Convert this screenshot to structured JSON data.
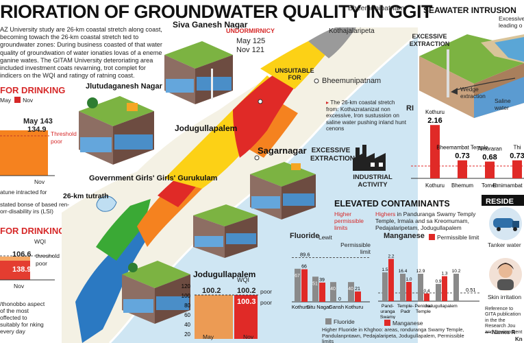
{
  "title": "RIORATION OF GROUNDWATER QUALITY IN GGIT",
  "intro": "AZ University study are 26-km coastal stretch along coast, becoming towach the 26-km coastal stretch ted to groundwater zones: During business coasted of that water quality of groundwation of water ionaties lovas of a eneme ganine wates. The GITAM University deteroriating area included investment coats revarning, trot complet for indicers on the WQI and ratingy of ratning coast.",
  "left_top": {
    "heading": "FOR DRINKING",
    "legend_may": "May",
    "legend_nov": "Nov",
    "may_value": "May 143",
    "nov_value": "134.9",
    "threshold": "Threshold",
    "poor": "poor",
    "nov_label": "Nov",
    "footnote": "atune intracted for"
  },
  "lsi_note": "stated bonse of based ren-orr-disability irs (LSI)",
  "left_bottom": {
    "heading": "FOR DRINKING",
    "wqi": "WQI",
    "may_value": "106.6",
    "nov_value": "138.9",
    "threshold": "threshold",
    "poor": "poor",
    "nov_label": "Nov",
    "note": "/thonobbo aspect of the most offected to suitably for nking every day"
  },
  "map_labels": {
    "siva_ganesh": "Siva Ganesh Nagar",
    "undormirnicy": "UNDORMIRNICY",
    "may125": "May 125",
    "nov121": "Nov 121",
    "bheemunipatnam_top": "Bheemunipatnam",
    "kothajalaripeta": "Kothajalaripeta",
    "unsuitable": "UNSUITABLE FOR",
    "bheemunipatnam_mid": "Bheemunipatnam",
    "coastal_note": "The 26-km coastal stretch from: Kothazratanizat non excessive, Iron sustussion on saline water pushing inland hunt cenons",
    "jlutudaganesh": "Jlutudaganesh Nagar",
    "jodugullapalem": "Jodugullapalem",
    "sagarnagar": "Sagarnagar",
    "excessive_extraction": "EXCESSIVE EXTRACTION",
    "industrial": "INDUSTRIAL ACTIVITY",
    "gurukulam": "Government Girls' Girls' Gurukulam",
    "tutrath": "26-km tutrath"
  },
  "jodu_chart": {
    "title": "Jodugullapalem",
    "wqi": "WQI",
    "may_value": "100.2",
    "nov_value": "100.2",
    "nov_value2": "100.3",
    "poor1": "poor",
    "poor2": "poor",
    "may_label": "May",
    "nov_label": "Nov"
  },
  "intrusion": {
    "title": "SEAWATER INTRUSION",
    "note": "Excessive leading o",
    "excessive": "EXCESSIVE EXTRACTION",
    "wedge": "Wedge extraction",
    "saline": "Saline water"
  },
  "ri_chart": {
    "label": "RI",
    "bars": [
      {
        "name": "Kothuru",
        "value": "2.16",
        "axis": "Kothuru"
      },
      {
        "name": "Bheemambat Temple",
        "value": "0.73",
        "axis": "Bhemum"
      },
      {
        "name": "Arnoraran",
        "value": "0.68",
        "axis": "Tomen"
      },
      {
        "name": "Thi",
        "value": "0.73",
        "axis": "Ernimambat Temple"
      }
    ]
  },
  "contaminants": {
    "heading": "ELEVATED CONTAMINANTS",
    "left_sub": "Higher permissible limits",
    "right_sub_a": "Highers",
    "right_sub_b": " in Panduranga Swamy Temply Temple, Irmala and sa Kreomumam, Pedajalaripetam, Jodugullapalem"
  },
  "fluoride": {
    "title": "Fluoride",
    "lewit": "Lewit",
    "permissible": "Permissible limit",
    "limit_value": "89.6",
    "bars": [
      {
        "may": 67,
        "nov": 66
      },
      {
        "may": 51,
        "nov": 39
      },
      {
        "may": 40,
        "nov": 0
      },
      {
        "may": 40,
        "nov": 21
      }
    ],
    "categories": [
      "Kothuru",
      "Situ Nagar",
      "Gansh",
      "Kothuru"
    ],
    "legend": "Fluoride",
    "footnote": "Higher Fluoride in Khghoo: areas, ronduranga Swamy Temple, Pandulanpntawn, Pedajalaripeta, Jodugullapalem, Permissible limits"
  },
  "manganese": {
    "title": "Manganese",
    "permissible": "Permissible limit",
    "limit_value": "0.51",
    "bars": [
      {
        "may": 1.5,
        "nov": 2.2
      },
      {
        "may": 16.4,
        "nov": 1.0
      },
      {
        "may": 12.9,
        "nov": 0.4
      },
      {
        "may": 0.9,
        "nov": 1.3
      },
      {
        "may": 10.2,
        "nov": null
      }
    ],
    "value_labels": [
      "1.5",
      "2.2",
      "16.4",
      "1.0",
      "12.9",
      "0.4",
      "0.9",
      "1.3",
      "10.2"
    ],
    "categories": [
      "Pand- uranga Swamy",
      "Temple- Padr",
      "Penima- Temple",
      "Jodugullapalem",
      ""
    ],
    "legend": "Manganese"
  },
  "resident": {
    "heading": "RESIDE",
    "tanker": "Tanker water",
    "skin": "Skin irritation",
    "ref": "Reference to GITA publication in the the Research Jou and Environment",
    "names": "— Names R",
    "kn": "Kn"
  },
  "colors": {
    "red": "#e02a27",
    "orange": "#f5821f",
    "yellow": "#fcd116",
    "green": "#3aa935",
    "blue": "#2b79c2",
    "gray": "#7f7f7f"
  }
}
